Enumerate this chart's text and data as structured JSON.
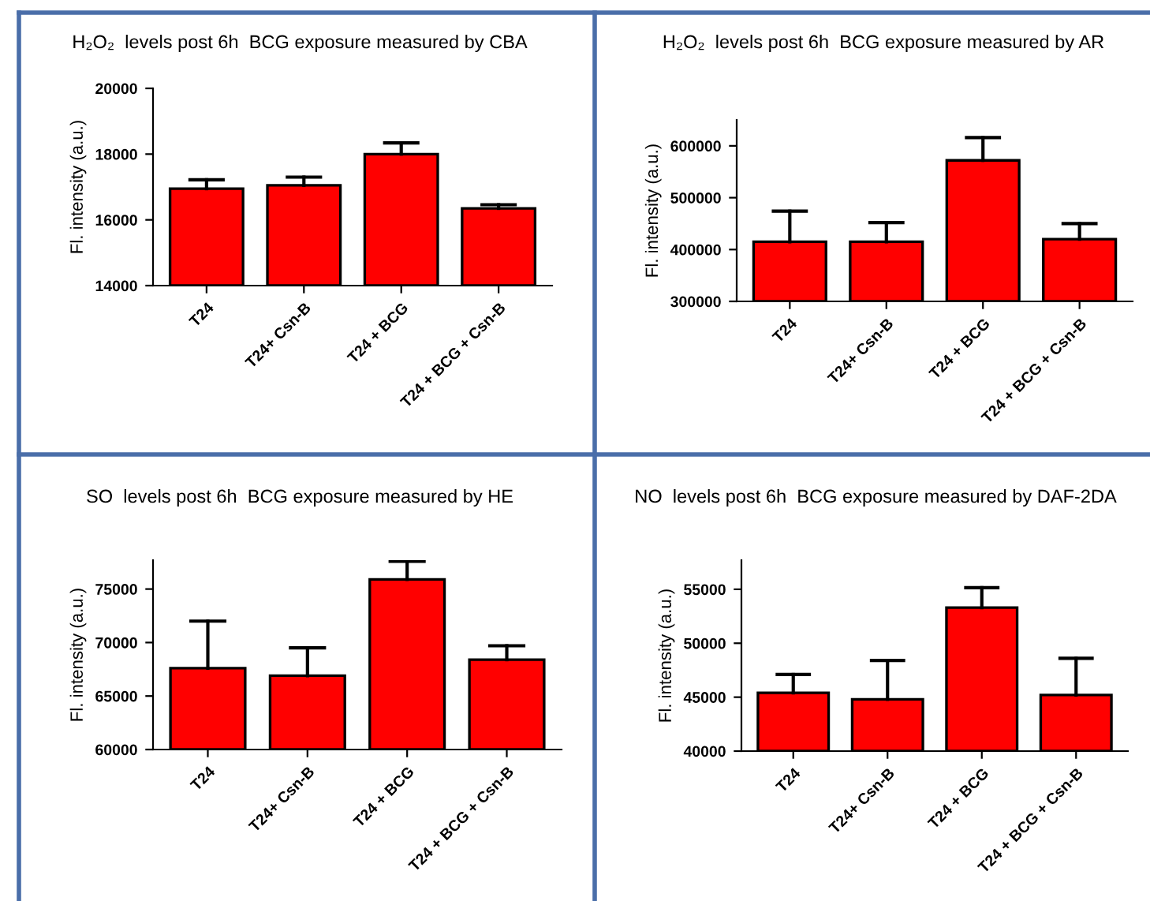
{
  "chart_data": [
    {
      "type": "bar",
      "title": "H₂O₂  levels post 6h  BCG exposure measured by CBA",
      "ylabel": "Fl. intensity (a.u.)",
      "categories": [
        "T24",
        "T24+ Csn-B",
        "T24 + BCG",
        "T24 + BCG + Csn-B"
      ],
      "values": [
        16950,
        17050,
        18000,
        16350
      ],
      "errors": [
        [
          16950,
          17220
        ],
        [
          17050,
          17300
        ],
        [
          18000,
          18340
        ],
        [
          16350,
          16460
        ]
      ],
      "color": "#ff0000",
      "ylim": [
        14000,
        20000
      ],
      "yticks": [
        14000,
        16000,
        18000,
        20000
      ],
      "grid": false,
      "legend": false
    },
    {
      "type": "bar",
      "title": "H₂O₂  levels post 6h  BCG exposure measured by AR",
      "ylabel": "Fl. intensity (a.u.)",
      "categories": [
        "T24",
        "T24+ Csn-B",
        "T24 + BCG",
        "T24 + BCG + Csn-B"
      ],
      "values": [
        415000,
        415000,
        572000,
        420000
      ],
      "errors": [
        [
          415000,
          474000
        ],
        [
          415000,
          452000
        ],
        [
          572000,
          616000
        ],
        [
          420000,
          450000
        ]
      ],
      "color": "#ff0000",
      "ylim": [
        300000,
        650000
      ],
      "yticks": [
        300000,
        400000,
        500000,
        600000
      ],
      "grid": false,
      "legend": false
    },
    {
      "type": "bar",
      "title": "SO  levels post 6h  BCG exposure measured by HE",
      "ylabel": "Fl. intensity (a.u.)",
      "categories": [
        "T24",
        "T24+ Csn-B",
        "T24 + BCG",
        "T24 + BCG + Csn-B"
      ],
      "values": [
        67600,
        66900,
        75900,
        68400
      ],
      "errors": [
        [
          67600,
          72000
        ],
        [
          66900,
          69500
        ],
        [
          75900,
          77600
        ],
        [
          68400,
          69700
        ]
      ],
      "color": "#ff0000",
      "ylim": [
        60000,
        77700
      ],
      "yticks": [
        60000,
        65000,
        70000,
        75000
      ],
      "grid": false,
      "legend": false
    },
    {
      "type": "bar",
      "title": "NO  levels post 6h  BCG exposure measured by DAF-2DA",
      "ylabel": "Fl. intensity (a.u.)",
      "categories": [
        "T24",
        "T24+ Csn-B",
        "T24 + BCG",
        "T24 + BCG + Csn-B"
      ],
      "values": [
        45400,
        44800,
        53300,
        45200
      ],
      "errors": [
        [
          45400,
          47100
        ],
        [
          44800,
          48400
        ],
        [
          53300,
          55150
        ],
        [
          45200,
          48600
        ]
      ],
      "color": "#ff0000",
      "ylim": [
        40000,
        57700
      ],
      "yticks": [
        40000,
        45000,
        50000,
        55000
      ],
      "grid": false,
      "legend": false
    }
  ]
}
